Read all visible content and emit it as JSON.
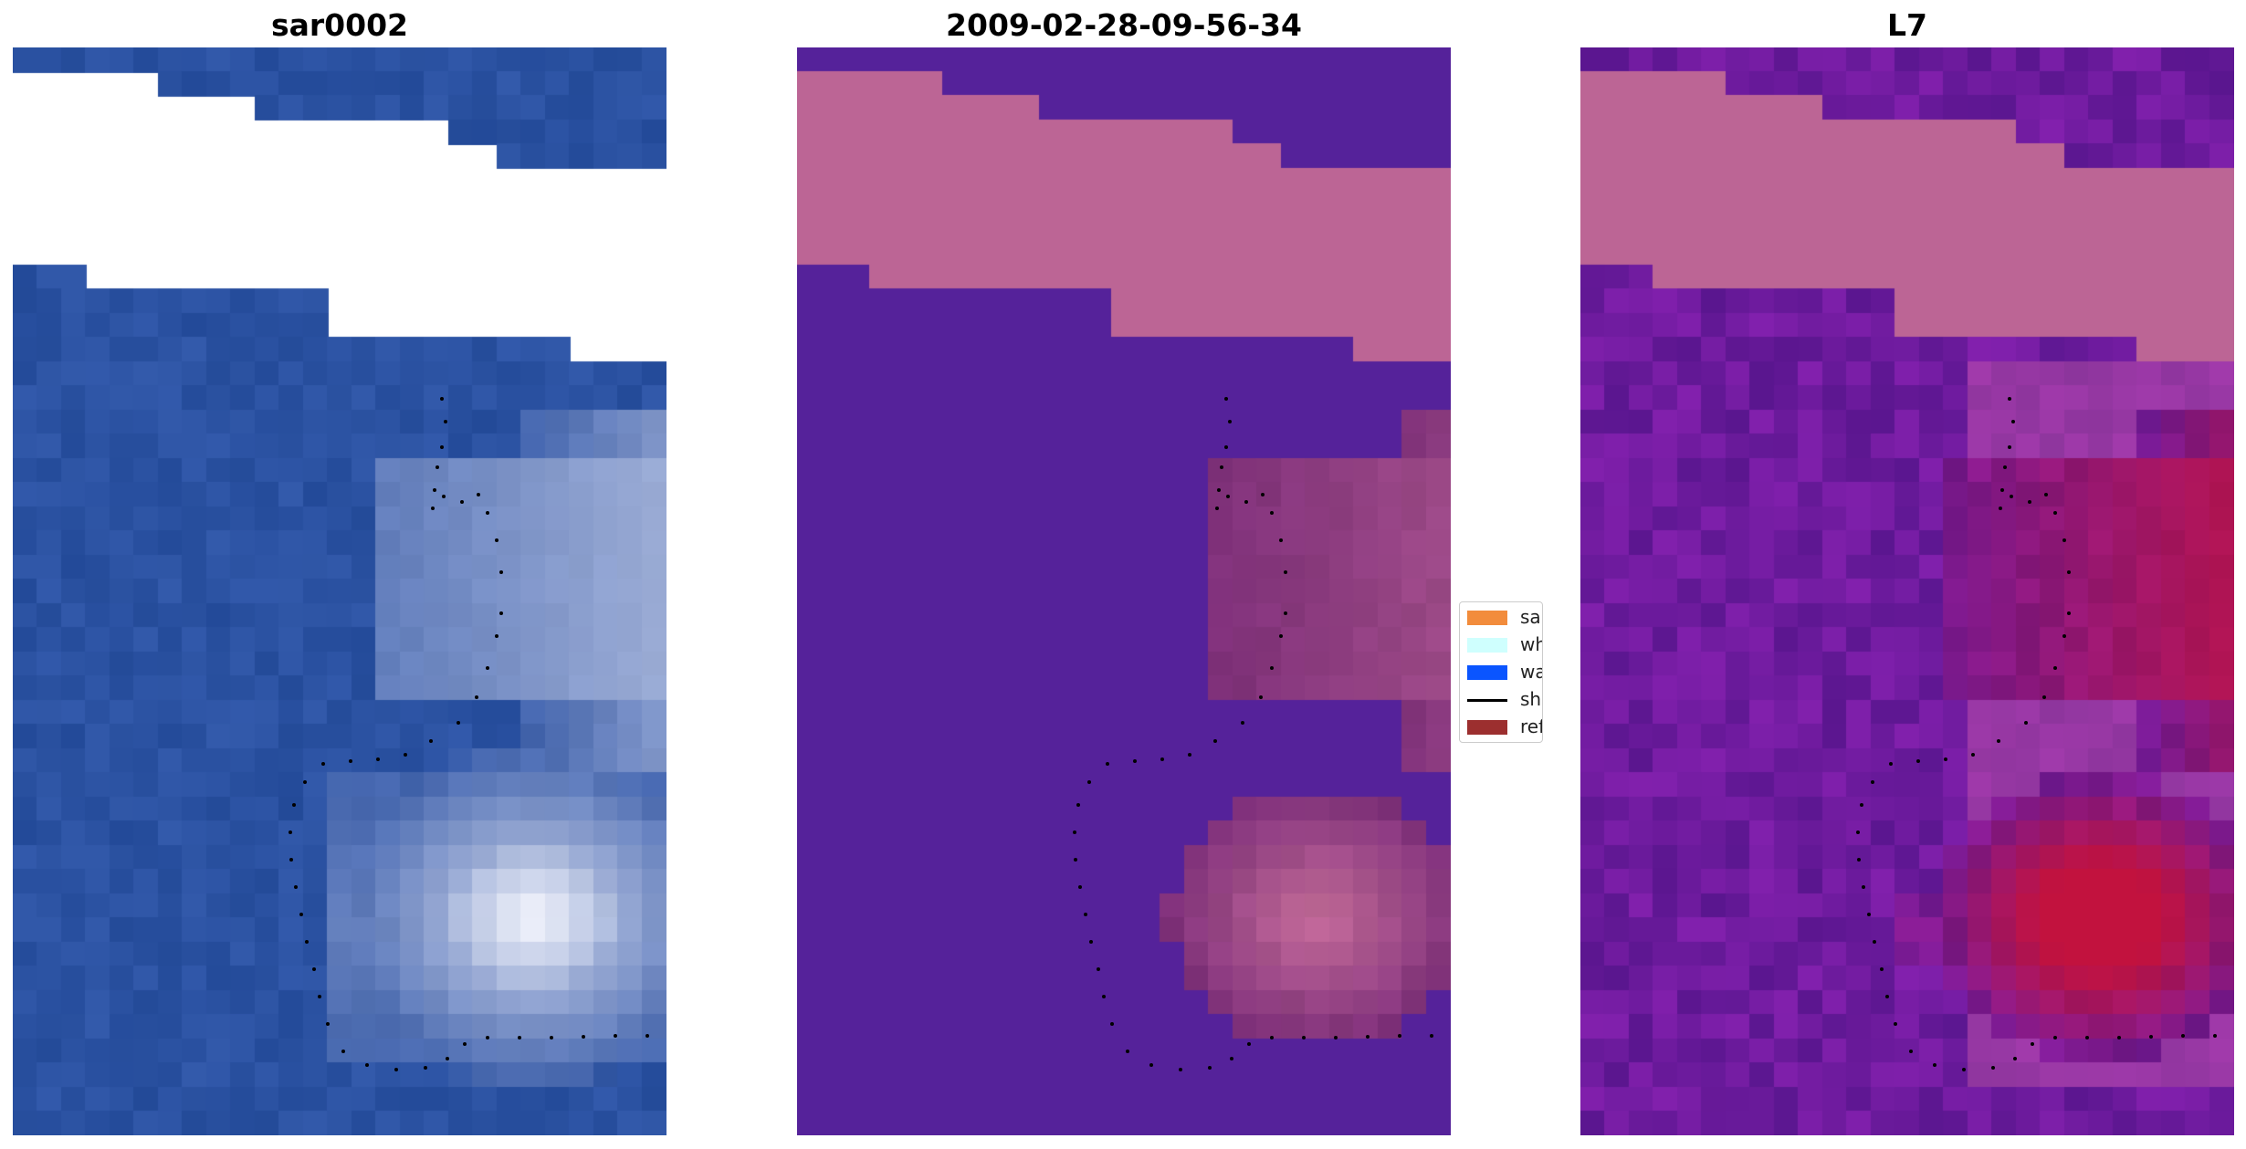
{
  "panels": [
    {
      "title": "sar0002",
      "kind": "rgb-image"
    },
    {
      "title": "2009-02-28-09-56-34",
      "kind": "classified-image"
    },
    {
      "title": "L7",
      "kind": "index-image"
    }
  ],
  "legend": {
    "items": [
      {
        "label": "sand",
        "color": "#f28c3c",
        "kind": "patch"
      },
      {
        "label": "whitewater",
        "color": "#cffffe",
        "kind": "patch"
      },
      {
        "label": "water",
        "color": "#0a55ff",
        "kind": "patch"
      },
      {
        "label": "shoreline",
        "color": "#000000",
        "kind": "line"
      },
      {
        "label": "reference shoreline buffer",
        "color": "#9c2f2f",
        "kind": "patch"
      }
    ]
  },
  "colors": {
    "ocean_blue": "#2b52a2",
    "class_water_purple": "#55229a",
    "class_land_pink": "#bc6595",
    "index_water_purple": "#6e1b9e",
    "index_land_red": "#c2123e",
    "shoreline_dots": "#000000"
  }
}
